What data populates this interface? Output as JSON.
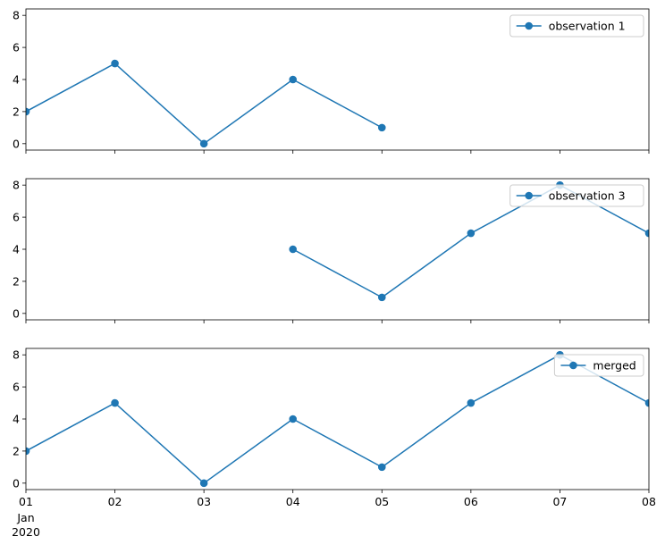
{
  "chart_data": {
    "type": "line",
    "x": [
      "2020-01-01",
      "2020-01-02",
      "2020-01-03",
      "2020-01-04",
      "2020-01-05",
      "2020-01-06",
      "2020-01-07",
      "2020-01-08"
    ],
    "xticklabels": [
      "01",
      "02",
      "03",
      "04",
      "05",
      "06",
      "07",
      "08"
    ],
    "xtick_sublabels": [
      "Jan",
      "2020"
    ],
    "xlim": [
      "2020-01-01",
      "2020-01-08"
    ],
    "ylim": [
      -0.4,
      8.4
    ],
    "yticks": [
      0,
      2,
      4,
      6,
      8
    ],
    "sharex": true,
    "grid": false,
    "color": "#1f77b4",
    "marker": "circle",
    "panels": [
      {
        "legend_position": "top-right",
        "series": [
          {
            "name": "observation 1",
            "x": [
              "2020-01-01",
              "2020-01-02",
              "2020-01-03",
              "2020-01-04",
              "2020-01-05"
            ],
            "values": [
              2,
              5,
              0,
              4,
              1
            ]
          }
        ]
      },
      {
        "legend_position": "top-right",
        "series": [
          {
            "name": "observation 3",
            "x": [
              "2020-01-04",
              "2020-01-05",
              "2020-01-06",
              "2020-01-07",
              "2020-01-08"
            ],
            "values": [
              4,
              1,
              5,
              8,
              5
            ]
          }
        ]
      },
      {
        "legend_position": "top-right",
        "series": [
          {
            "name": "merged",
            "x": [
              "2020-01-01",
              "2020-01-02",
              "2020-01-03",
              "2020-01-04",
              "2020-01-05",
              "2020-01-06",
              "2020-01-07",
              "2020-01-08"
            ],
            "values": [
              2,
              5,
              0,
              4,
              1,
              5,
              8,
              5
            ]
          }
        ]
      }
    ]
  }
}
